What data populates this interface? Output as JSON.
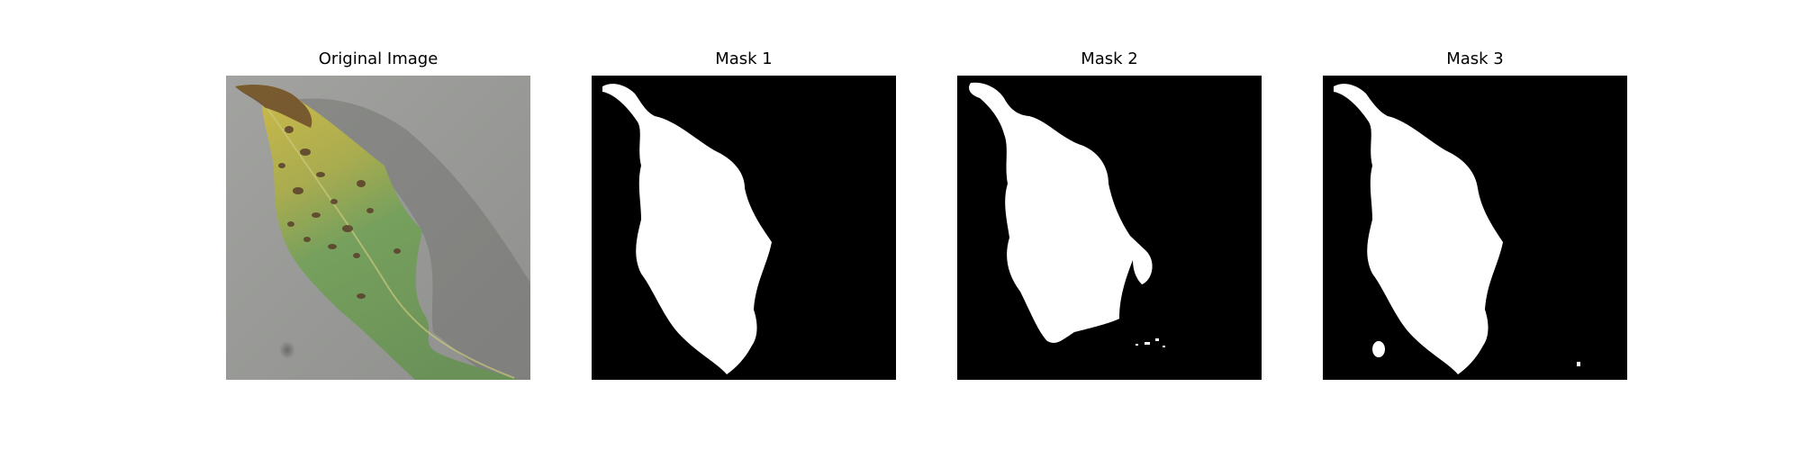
{
  "panels": [
    {
      "title": "Original Image",
      "kind": "photo"
    },
    {
      "title": "Mask 1",
      "kind": "mask"
    },
    {
      "title": "Mask 2",
      "kind": "mask"
    },
    {
      "title": "Mask 3",
      "kind": "mask"
    }
  ],
  "colors": {
    "background": "#ffffff",
    "mask_background": "#000000",
    "mask_foreground": "#ffffff",
    "surface": "#9a9b98",
    "leaf_green": "#6f9a5b",
    "leaf_yellow": "#c3b54b",
    "spots": "#5a3e2b"
  }
}
